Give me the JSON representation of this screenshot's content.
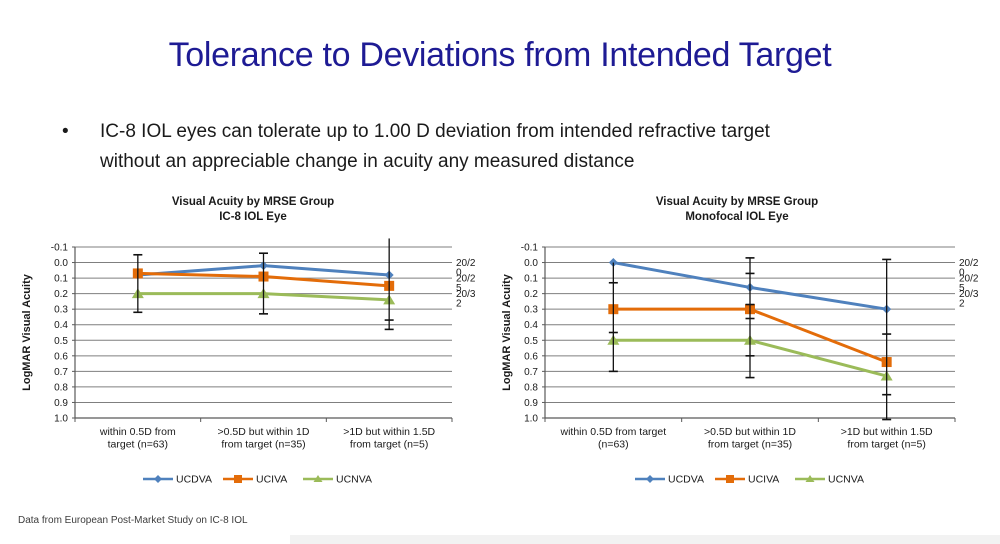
{
  "slide": {
    "title": "Tolerance to Deviations from Intended Target",
    "bullet_lines": [
      "IC-8 IOL eyes can tolerate up to 1.00 D deviation from intended refractive target",
      "without an appreciable change in acuity any measured distance"
    ],
    "footnote": "Data from European Post-Market Study on IC-8 IOL"
  },
  "colors": {
    "title": "#1e1b94",
    "ucdva": "#4f81bd",
    "uciva": "#e36c09",
    "ucnva": "#9bbb59",
    "grid": "#7f7f7f",
    "axis": "#595959",
    "error": "#111111"
  },
  "chart_data": [
    {
      "type": "line",
      "title_line1": "Visual Acuity by MRSE Group",
      "title_line2": "IC-8 IOL Eye",
      "ylabel": "LogMAR Visual Acuity",
      "ylim": [
        -0.1,
        1.0
      ],
      "yticks": [
        "-0.1",
        "0.0",
        "0.1",
        "0.2",
        "0.3",
        "0.4",
        "0.5",
        "0.6",
        "0.7",
        "0.8",
        "0.9",
        "1.0"
      ],
      "grid": true,
      "legend_position": "bottom",
      "categories": [
        [
          "within 0.5D from",
          "target (n=63)"
        ],
        [
          ">0.5D but within 1D",
          "from target (n=35)"
        ],
        [
          ">1D but within 1.5D",
          "from target (n=5)"
        ]
      ],
      "right_axis_labels": [
        {
          "value": 0.0,
          "lines": [
            "20/2",
            "0"
          ]
        },
        {
          "value": 0.1,
          "lines": [
            "20/2",
            "5"
          ]
        },
        {
          "value": 0.2,
          "lines": [
            "20/3",
            "2"
          ]
        }
      ],
      "series": [
        {
          "name": "UCDVA",
          "color_key": "ucdva",
          "marker": "diamond",
          "values": [
            0.08,
            0.02,
            0.08
          ]
        },
        {
          "name": "UCIVA",
          "color_key": "uciva",
          "marker": "square",
          "values": [
            0.07,
            0.09,
            0.15
          ]
        },
        {
          "name": "UCNVA",
          "color_key": "ucnva",
          "marker": "triangle",
          "values": [
            0.2,
            0.2,
            0.24
          ]
        }
      ],
      "error_bars": [
        {
          "cat": 0,
          "lo": -0.05,
          "hi": 0.32,
          "caps": [
            -0.05,
            0.32
          ]
        },
        {
          "cat": 1,
          "lo": -0.06,
          "hi": 0.33,
          "caps": [
            -0.06,
            0.33
          ]
        },
        {
          "cat": 2,
          "lo": -0.155,
          "hi": 0.43,
          "caps": [
            0.37,
            0.43
          ]
        }
      ]
    },
    {
      "type": "line",
      "title_line1": "Visual Acuity by MRSE Group",
      "title_line2": "Monofocal IOL Eye",
      "ylabel": "LogMAR Visual Acuity",
      "ylim": [
        -0.1,
        1.0
      ],
      "yticks": [
        "-0.1",
        "0.0",
        "0.1",
        "0.2",
        "0.3",
        "0.4",
        "0.5",
        "0.6",
        "0.7",
        "0.8",
        "0.9",
        "1.0"
      ],
      "grid": true,
      "legend_position": "bottom",
      "categories": [
        [
          "within 0.5D from target",
          "(n=63)"
        ],
        [
          ">0.5D but within 1D",
          "from target (n=35)"
        ],
        [
          ">1D but within 1.5D",
          "from target (n=5)"
        ]
      ],
      "right_axis_labels": [
        {
          "value": 0.0,
          "lines": [
            "20/2",
            "0"
          ]
        },
        {
          "value": 0.1,
          "lines": [
            "20/2",
            "5"
          ]
        },
        {
          "value": 0.2,
          "lines": [
            "20/3",
            "2"
          ]
        }
      ],
      "series": [
        {
          "name": "UCDVA",
          "color_key": "ucdva",
          "marker": "diamond",
          "values": [
            0.0,
            0.16,
            0.3
          ]
        },
        {
          "name": "UCIVA",
          "color_key": "uciva",
          "marker": "square",
          "values": [
            0.3,
            0.3,
            0.64
          ]
        },
        {
          "name": "UCNVA",
          "color_key": "ucnva",
          "marker": "triangle",
          "values": [
            0.5,
            0.5,
            0.73
          ]
        }
      ],
      "error_bars": [
        {
          "cat": 0,
          "lo": 0.0,
          "hi": 0.7,
          "caps": [
            0.13,
            0.45,
            0.7
          ]
        },
        {
          "cat": 1,
          "lo": -0.03,
          "hi": 0.74,
          "caps": [
            -0.03,
            0.07,
            0.27,
            0.36,
            0.6,
            0.74
          ]
        },
        {
          "cat": 2,
          "lo": -0.02,
          "hi": 1.01,
          "caps": [
            -0.02,
            0.46,
            0.85,
            1.01
          ]
        }
      ]
    }
  ]
}
